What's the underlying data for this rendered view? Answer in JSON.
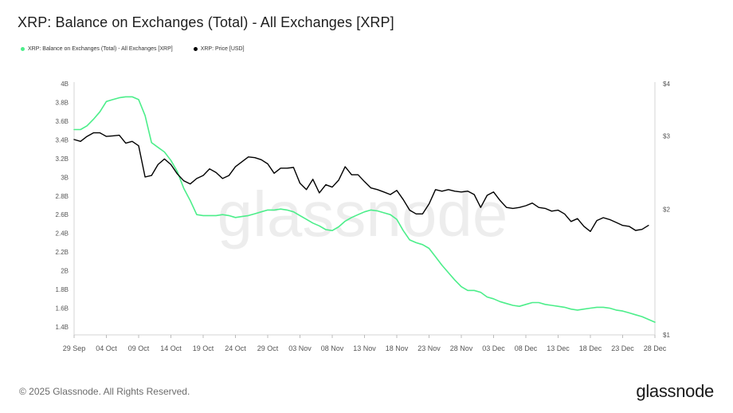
{
  "title": "XRP: Balance on Exchanges (Total) - All Exchanges [XRP]",
  "legend": [
    {
      "label": "XRP: Balance on Exchanges (Total) - All Exchanges [XRP]",
      "color": "#4cee8a"
    },
    {
      "label": "XRP: Price [USD]",
      "color": "#000000"
    }
  ],
  "watermark": "glassnode",
  "footer": {
    "copyright": "© 2025 Glassnode. All Rights Reserved.",
    "brand": "glassnode"
  },
  "chart_data": {
    "type": "line",
    "title": "XRP: Balance on Exchanges (Total) - All Exchanges [XRP]",
    "x_start": "2024-09-29",
    "x_end": "2024-12-28",
    "x_ticks": [
      "29 Sep",
      "04 Oct",
      "09 Oct",
      "14 Oct",
      "19 Oct",
      "24 Oct",
      "29 Oct",
      "03 Nov",
      "08 Nov",
      "13 Nov",
      "18 Nov",
      "23 Nov",
      "28 Nov",
      "03 Dec",
      "08 Dec",
      "13 Dec",
      "18 Dec",
      "23 Dec",
      "28 Dec"
    ],
    "y_left": {
      "ticks": [
        "1.4B",
        "1.6B",
        "1.8B",
        "2B",
        "2.2B",
        "2.4B",
        "2.6B",
        "2.8B",
        "3B",
        "3.2B",
        "3.4B",
        "3.6B",
        "3.8B",
        "4B"
      ],
      "min": 1.4,
      "max": 4.0,
      "unit": "B"
    },
    "y_right": {
      "ticks": [
        "$1",
        "$2",
        "$3",
        "$4"
      ],
      "scale": "log",
      "min": 1,
      "max": 4
    },
    "grid": false,
    "legend_position": "top-left",
    "series": [
      {
        "name": "XRP: Balance on Exchanges (Total) - All Exchanges [XRP]",
        "axis": "left",
        "color": "#4cee8a",
        "points": [
          [
            "2024-09-29",
            3.51
          ],
          [
            "2024-09-30",
            3.51
          ],
          [
            "2024-10-01",
            3.55
          ],
          [
            "2024-10-02",
            3.62
          ],
          [
            "2024-10-03",
            3.7
          ],
          [
            "2024-10-04",
            3.81
          ],
          [
            "2024-10-05",
            3.83
          ],
          [
            "2024-10-06",
            3.85
          ],
          [
            "2024-10-07",
            3.86
          ],
          [
            "2024-10-08",
            3.86
          ],
          [
            "2024-10-09",
            3.83
          ],
          [
            "2024-10-10",
            3.66
          ],
          [
            "2024-10-11",
            3.37
          ],
          [
            "2024-10-12",
            3.32
          ],
          [
            "2024-10-13",
            3.27
          ],
          [
            "2024-10-14",
            3.18
          ],
          [
            "2024-10-15",
            3.06
          ],
          [
            "2024-10-16",
            2.88
          ],
          [
            "2024-10-17",
            2.75
          ],
          [
            "2024-10-18",
            2.6
          ],
          [
            "2024-10-19",
            2.59
          ],
          [
            "2024-10-20",
            2.59
          ],
          [
            "2024-10-21",
            2.59
          ],
          [
            "2024-10-22",
            2.6
          ],
          [
            "2024-10-23",
            2.59
          ],
          [
            "2024-10-24",
            2.57
          ],
          [
            "2024-10-25",
            2.58
          ],
          [
            "2024-10-26",
            2.59
          ],
          [
            "2024-10-27",
            2.61
          ],
          [
            "2024-10-28",
            2.63
          ],
          [
            "2024-10-29",
            2.65
          ],
          [
            "2024-10-30",
            2.65
          ],
          [
            "2024-10-31",
            2.66
          ],
          [
            "2024-11-01",
            2.65
          ],
          [
            "2024-11-02",
            2.63
          ],
          [
            "2024-11-03",
            2.59
          ],
          [
            "2024-11-04",
            2.55
          ],
          [
            "2024-11-05",
            2.51
          ],
          [
            "2024-11-06",
            2.48
          ],
          [
            "2024-11-07",
            2.44
          ],
          [
            "2024-11-08",
            2.43
          ],
          [
            "2024-11-09",
            2.47
          ],
          [
            "2024-11-10",
            2.53
          ],
          [
            "2024-11-11",
            2.57
          ],
          [
            "2024-11-12",
            2.6
          ],
          [
            "2024-11-13",
            2.63
          ],
          [
            "2024-11-14",
            2.65
          ],
          [
            "2024-11-15",
            2.64
          ],
          [
            "2024-11-16",
            2.62
          ],
          [
            "2024-11-17",
            2.6
          ],
          [
            "2024-11-18",
            2.55
          ],
          [
            "2024-11-19",
            2.43
          ],
          [
            "2024-11-20",
            2.33
          ],
          [
            "2024-11-21",
            2.3
          ],
          [
            "2024-11-22",
            2.28
          ],
          [
            "2024-11-23",
            2.24
          ],
          [
            "2024-11-24",
            2.15
          ],
          [
            "2024-11-25",
            2.06
          ],
          [
            "2024-11-26",
            1.98
          ],
          [
            "2024-11-27",
            1.9
          ],
          [
            "2024-11-28",
            1.83
          ],
          [
            "2024-11-29",
            1.79
          ],
          [
            "2024-11-30",
            1.79
          ],
          [
            "2024-12-01",
            1.77
          ],
          [
            "2024-12-02",
            1.72
          ],
          [
            "2024-12-03",
            1.7
          ],
          [
            "2024-12-04",
            1.67
          ],
          [
            "2024-12-05",
            1.65
          ],
          [
            "2024-12-06",
            1.63
          ],
          [
            "2024-12-07",
            1.62
          ],
          [
            "2024-12-08",
            1.64
          ],
          [
            "2024-12-09",
            1.66
          ],
          [
            "2024-12-10",
            1.66
          ],
          [
            "2024-12-11",
            1.64
          ],
          [
            "2024-12-12",
            1.63
          ],
          [
            "2024-12-13",
            1.62
          ],
          [
            "2024-12-14",
            1.61
          ],
          [
            "2024-12-15",
            1.59
          ],
          [
            "2024-12-16",
            1.58
          ],
          [
            "2024-12-17",
            1.59
          ],
          [
            "2024-12-18",
            1.6
          ],
          [
            "2024-12-19",
            1.61
          ],
          [
            "2024-12-20",
            1.61
          ],
          [
            "2024-12-21",
            1.6
          ],
          [
            "2024-12-22",
            1.58
          ],
          [
            "2024-12-23",
            1.57
          ],
          [
            "2024-12-24",
            1.55
          ],
          [
            "2024-12-25",
            1.53
          ],
          [
            "2024-12-26",
            1.51
          ],
          [
            "2024-12-27",
            1.48
          ],
          [
            "2024-12-28",
            1.45
          ]
        ]
      },
      {
        "name": "XRP: Price [USD]",
        "axis": "right",
        "color": "#000000",
        "points": [
          [
            "2024-09-29",
            2.94
          ],
          [
            "2024-09-30",
            2.91
          ],
          [
            "2024-10-01",
            2.99
          ],
          [
            "2024-10-02",
            3.05
          ],
          [
            "2024-10-03",
            3.05
          ],
          [
            "2024-10-04",
            2.99
          ],
          [
            "2024-10-05",
            3.0
          ],
          [
            "2024-10-06",
            3.01
          ],
          [
            "2024-10-07",
            2.88
          ],
          [
            "2024-10-08",
            2.91
          ],
          [
            "2024-10-09",
            2.84
          ],
          [
            "2024-10-10",
            2.39
          ],
          [
            "2024-10-11",
            2.41
          ],
          [
            "2024-10-12",
            2.56
          ],
          [
            "2024-10-13",
            2.64
          ],
          [
            "2024-10-14",
            2.56
          ],
          [
            "2024-10-15",
            2.43
          ],
          [
            "2024-10-16",
            2.34
          ],
          [
            "2024-10-17",
            2.3
          ],
          [
            "2024-10-18",
            2.37
          ],
          [
            "2024-10-19",
            2.41
          ],
          [
            "2024-10-20",
            2.5
          ],
          [
            "2024-10-21",
            2.45
          ],
          [
            "2024-10-22",
            2.37
          ],
          [
            "2024-10-23",
            2.41
          ],
          [
            "2024-10-24",
            2.53
          ],
          [
            "2024-10-25",
            2.6
          ],
          [
            "2024-10-26",
            2.67
          ],
          [
            "2024-10-27",
            2.66
          ],
          [
            "2024-10-28",
            2.63
          ],
          [
            "2024-10-29",
            2.57
          ],
          [
            "2024-10-30",
            2.44
          ],
          [
            "2024-10-31",
            2.51
          ],
          [
            "2024-11-01",
            2.51
          ],
          [
            "2024-11-02",
            2.52
          ],
          [
            "2024-11-03",
            2.31
          ],
          [
            "2024-11-04",
            2.23
          ],
          [
            "2024-11-05",
            2.36
          ],
          [
            "2024-11-06",
            2.19
          ],
          [
            "2024-11-07",
            2.29
          ],
          [
            "2024-11-08",
            2.26
          ],
          [
            "2024-11-09",
            2.35
          ],
          [
            "2024-11-10",
            2.53
          ],
          [
            "2024-11-11",
            2.42
          ],
          [
            "2024-11-12",
            2.42
          ],
          [
            "2024-11-13",
            2.33
          ],
          [
            "2024-11-14",
            2.25
          ],
          [
            "2024-11-15",
            2.23
          ],
          [
            "2024-11-16",
            2.2
          ],
          [
            "2024-11-17",
            2.17
          ],
          [
            "2024-11-18",
            2.22
          ],
          [
            "2024-11-19",
            2.11
          ],
          [
            "2024-11-20",
            1.99
          ],
          [
            "2024-11-21",
            1.95
          ],
          [
            "2024-11-22",
            1.95
          ],
          [
            "2024-11-23",
            2.06
          ],
          [
            "2024-11-24",
            2.23
          ],
          [
            "2024-11-25",
            2.21
          ],
          [
            "2024-11-26",
            2.23
          ],
          [
            "2024-11-27",
            2.21
          ],
          [
            "2024-11-28",
            2.2
          ],
          [
            "2024-11-29",
            2.21
          ],
          [
            "2024-11-30",
            2.17
          ],
          [
            "2024-12-01",
            2.02
          ],
          [
            "2024-12-02",
            2.16
          ],
          [
            "2024-12-03",
            2.2
          ],
          [
            "2024-12-04",
            2.1
          ],
          [
            "2024-12-05",
            2.02
          ],
          [
            "2024-12-06",
            2.01
          ],
          [
            "2024-12-07",
            2.02
          ],
          [
            "2024-12-08",
            2.04
          ],
          [
            "2024-12-09",
            2.07
          ],
          [
            "2024-12-10",
            2.02
          ],
          [
            "2024-12-11",
            2.01
          ],
          [
            "2024-12-12",
            1.98
          ],
          [
            "2024-12-13",
            1.99
          ],
          [
            "2024-12-14",
            1.95
          ],
          [
            "2024-12-15",
            1.87
          ],
          [
            "2024-12-16",
            1.9
          ],
          [
            "2024-12-17",
            1.82
          ],
          [
            "2024-12-18",
            1.77
          ],
          [
            "2024-12-19",
            1.88
          ],
          [
            "2024-12-20",
            1.91
          ],
          [
            "2024-12-21",
            1.89
          ],
          [
            "2024-12-22",
            1.86
          ],
          [
            "2024-12-23",
            1.83
          ],
          [
            "2024-12-24",
            1.82
          ],
          [
            "2024-12-25",
            1.78
          ],
          [
            "2024-12-26",
            1.79
          ],
          [
            "2024-12-27",
            1.83
          ]
        ]
      }
    ]
  }
}
